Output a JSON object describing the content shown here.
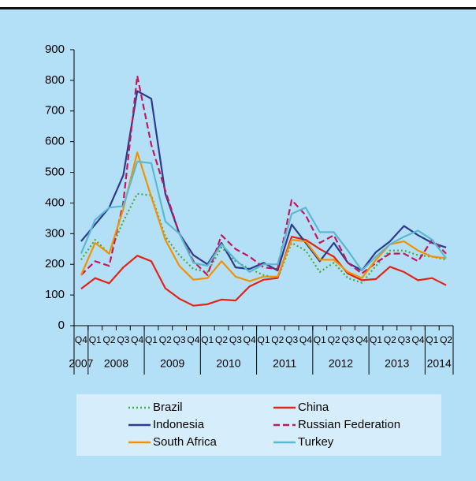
{
  "chart_data": {
    "type": "line",
    "categories": [
      "Q4",
      "Q1",
      "Q2",
      "Q3",
      "Q4",
      "Q1",
      "Q2",
      "Q3",
      "Q4",
      "Q1",
      "Q2",
      "Q3",
      "Q4",
      "Q1",
      "Q2",
      "Q3",
      "Q4",
      "Q1",
      "Q2",
      "Q3",
      "Q4",
      "Q1",
      "Q2",
      "Q3",
      "Q4",
      "Q1",
      "Q2"
    ],
    "year_groups": [
      {
        "label": "2007",
        "size": 1
      },
      {
        "label": "2008",
        "size": 4
      },
      {
        "label": "2009",
        "size": 4
      },
      {
        "label": "2010",
        "size": 4
      },
      {
        "label": "2011",
        "size": 4
      },
      {
        "label": "2012",
        "size": 4
      },
      {
        "label": "2013",
        "size": 4
      },
      {
        "label": "2014",
        "size": 2
      }
    ],
    "ylim": [
      0,
      900
    ],
    "yticks": [
      0,
      100,
      200,
      300,
      400,
      500,
      600,
      700,
      800,
      900
    ],
    "grid": false,
    "legend": "bottom",
    "series": [
      {
        "name": "Brazil",
        "color": "#4aa83f",
        "line_style": "dotted",
        "values": [
          215,
          280,
          235,
          340,
          430,
          425,
          290,
          230,
          185,
          175,
          255,
          210,
          185,
          165,
          155,
          270,
          245,
          175,
          205,
          155,
          140,
          195,
          245,
          245,
          230,
          225,
          215
        ]
      },
      {
        "name": "China",
        "color": "#e2231a",
        "line_style": "solid",
        "values": [
          120,
          155,
          138,
          190,
          228,
          210,
          122,
          88,
          65,
          70,
          85,
          82,
          128,
          150,
          155,
          290,
          280,
          250,
          225,
          170,
          148,
          152,
          192,
          175,
          148,
          155,
          132
        ]
      },
      {
        "name": "Indonesia",
        "color": "#2e3a8c",
        "line_style": "solid",
        "values": [
          275,
          330,
          385,
          490,
          765,
          740,
          430,
          300,
          230,
          200,
          270,
          190,
          185,
          205,
          180,
          330,
          270,
          210,
          270,
          205,
          180,
          240,
          275,
          325,
          295,
          270,
          255
        ]
      },
      {
        "name": "Russian Federation",
        "color": "#c2185b",
        "line_style": "dashed",
        "values": [
          165,
          210,
          195,
          400,
          815,
          590,
          440,
          300,
          210,
          165,
          295,
          250,
          225,
          190,
          185,
          410,
          360,
          270,
          295,
          205,
          170,
          205,
          235,
          235,
          210,
          280,
          235
        ]
      },
      {
        "name": "South Africa",
        "color": "#f39200",
        "line_style": "solid",
        "values": [
          165,
          270,
          235,
          380,
          565,
          420,
          280,
          195,
          150,
          155,
          210,
          160,
          145,
          160,
          160,
          280,
          275,
          215,
          215,
          175,
          155,
          215,
          265,
          275,
          245,
          225,
          220
        ]
      },
      {
        "name": "Turkey",
        "color": "#5bb8d0",
        "line_style": "solid",
        "values": [
          235,
          345,
          385,
          390,
          535,
          530,
          340,
          300,
          205,
          195,
          265,
          215,
          175,
          200,
          200,
          365,
          385,
          305,
          305,
          245,
          180,
          225,
          265,
          290,
          310,
          280,
          220
        ]
      }
    ]
  }
}
